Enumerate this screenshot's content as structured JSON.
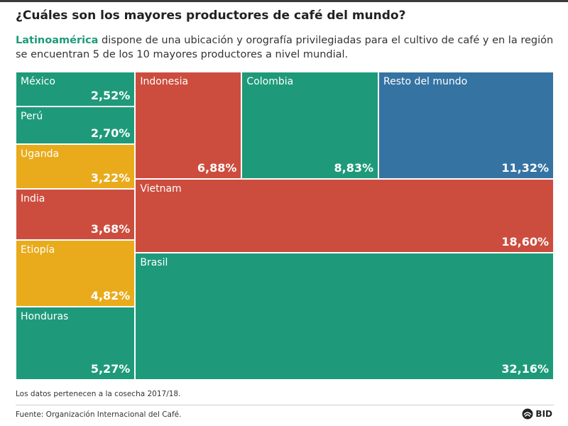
{
  "title": "¿Cuáles son los mayores productores de café del mundo?",
  "subtitle": {
    "highlight": "Latinoamérica",
    "rest": " dispone de una ubicación y orografía privilegiadas para el cultivo de café y en la región se encuentran 5 de los 10 mayores productores a nivel mundial."
  },
  "colors": {
    "latam": "#1e9a7a",
    "africa": "#e9ab1b",
    "asia": "#cc4d3e",
    "rest": "#3573a3",
    "highlight": "#1e9a7a"
  },
  "chart_data": {
    "type": "treemap",
    "unit": "%",
    "items": [
      {
        "name": "México",
        "value": 2.52,
        "label": "2,52%",
        "group": "latam"
      },
      {
        "name": "Perú",
        "value": 2.7,
        "label": "2,70%",
        "group": "latam"
      },
      {
        "name": "Uganda",
        "value": 3.22,
        "label": "3,22%",
        "group": "africa"
      },
      {
        "name": "India",
        "value": 3.68,
        "label": "3,68%",
        "group": "asia"
      },
      {
        "name": "Etiopía",
        "value": 4.82,
        "label": "4,82%",
        "group": "africa"
      },
      {
        "name": "Honduras",
        "value": 5.27,
        "label": "5,27%",
        "group": "latam"
      },
      {
        "name": "Indonesia",
        "value": 6.88,
        "label": "6,88%",
        "group": "asia"
      },
      {
        "name": "Colombia",
        "value": 8.83,
        "label": "8,83%",
        "group": "latam"
      },
      {
        "name": "Resto del mundo",
        "value": 11.32,
        "label": "11,32%",
        "group": "rest"
      },
      {
        "name": "Vietnam",
        "value": 18.6,
        "label": "18,60%",
        "group": "asia"
      },
      {
        "name": "Brasil",
        "value": 32.16,
        "label": "32,16%",
        "group": "latam"
      }
    ]
  },
  "note": "Los datos pertenecen a la cosecha 2017/18.",
  "source": "Fuente: Organización Internacional del Café.",
  "logo": {
    "text": "BID",
    "icon": "bid-logo-icon"
  }
}
